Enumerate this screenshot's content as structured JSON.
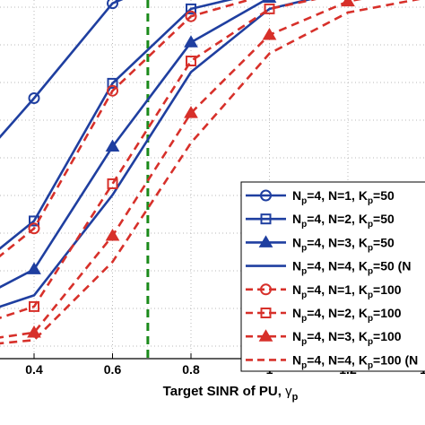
{
  "chart_data": {
    "type": "line",
    "xlabel": "Target SINR of PU, γp",
    "xlabel_main": "Target SINR of PU, ",
    "xlabel_symbol": "γ",
    "xlabel_sub": "p",
    "xlim": [
      0.2,
      1.4
    ],
    "ylim": [
      0,
      1
    ],
    "grid": true,
    "x_ticks": [
      0.4,
      0.6,
      0.8,
      1,
      1.2
    ],
    "x_tick_labels": [
      "0.4",
      "0.6",
      "0.8",
      "1",
      "1.2"
    ],
    "x_tick_partial_label": "1",
    "reference_line_x": 0.69,
    "reference_line_color": "#1a8a1a",
    "legend_position": "lower-right",
    "colors": {
      "blue": "#1f3fa0",
      "red": "#d7302a"
    },
    "series": [
      {
        "name": "Np=4, N=1, Kp=50",
        "label_parts": [
          "4",
          "1",
          "50"
        ],
        "suffix": "",
        "color": "#1f3fa0",
        "dash": "solid",
        "marker": "circle",
        "x": [
          0.2,
          0.4,
          0.6,
          0.7
        ],
        "y": [
          0.46,
          0.7,
          0.955,
          1.0
        ]
      },
      {
        "name": "Np=4, N=2, Kp=50",
        "label_parts": [
          "4",
          "2",
          "50"
        ],
        "suffix": "",
        "color": "#1f3fa0",
        "dash": "solid",
        "marker": "square",
        "x": [
          0.2,
          0.4,
          0.6,
          0.8,
          1.0,
          1.2
        ],
        "y": [
          0.2,
          0.37,
          0.74,
          0.94,
          0.99,
          1.0
        ]
      },
      {
        "name": "Np=4, N=3, Kp=50",
        "label_parts": [
          "4",
          "3",
          "50"
        ],
        "suffix": "",
        "color": "#1f3fa0",
        "dash": "solid",
        "marker": "triangle",
        "x": [
          0.2,
          0.4,
          0.6,
          0.8,
          1.0,
          1.2
        ],
        "y": [
          0.13,
          0.24,
          0.57,
          0.85,
          0.97,
          1.0
        ]
      },
      {
        "name": "Np=4, N=4, Kp=50 (N",
        "label_parts": [
          "4",
          "4",
          "50"
        ],
        "suffix": " (N",
        "color": "#1f3fa0",
        "dash": "solid",
        "marker": "none",
        "x": [
          0.2,
          0.4,
          0.6,
          0.8,
          1.0,
          1.2,
          1.4
        ],
        "y": [
          0.1,
          0.17,
          0.44,
          0.77,
          0.94,
          0.99,
          1.0
        ]
      },
      {
        "name": "Np=4, N=1, Kp=100",
        "label_parts": [
          "4",
          "1",
          "100"
        ],
        "suffix": "",
        "color": "#d7302a",
        "dash": "dashed",
        "marker": "circle",
        "x": [
          0.2,
          0.4,
          0.6,
          0.8,
          1.0,
          1.2
        ],
        "y": [
          0.18,
          0.35,
          0.72,
          0.92,
          0.98,
          1.0
        ]
      },
      {
        "name": "Np=4, N=2, Kp=100",
        "label_parts": [
          "4",
          "2",
          "100"
        ],
        "suffix": "",
        "color": "#d7302a",
        "dash": "dashed",
        "marker": "square",
        "x": [
          0.2,
          0.4,
          0.6,
          0.8,
          1.0,
          1.2,
          1.4
        ],
        "y": [
          0.07,
          0.14,
          0.47,
          0.8,
          0.94,
          0.985,
          1.0
        ]
      },
      {
        "name": "Np=4, N=3, Kp=100",
        "label_parts": [
          "4",
          "3",
          "100"
        ],
        "suffix": "",
        "color": "#d7302a",
        "dash": "dashed",
        "marker": "triangle",
        "x": [
          0.2,
          0.4,
          0.6,
          0.8,
          1.0,
          1.2,
          1.4
        ],
        "y": [
          0.04,
          0.07,
          0.33,
          0.66,
          0.87,
          0.96,
          1.0
        ]
      },
      {
        "name": "Np=4, N=4, Kp=100 (N",
        "label_parts": [
          "4",
          "4",
          "100"
        ],
        "suffix": " (N",
        "color": "#d7302a",
        "dash": "dashed",
        "marker": "none",
        "x": [
          0.2,
          0.4,
          0.6,
          0.8,
          1.0,
          1.2,
          1.4
        ],
        "y": [
          0.03,
          0.05,
          0.26,
          0.58,
          0.82,
          0.93,
          0.97
        ]
      }
    ]
  }
}
